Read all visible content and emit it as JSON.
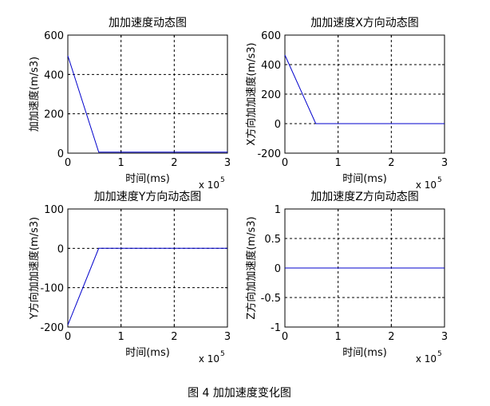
{
  "figure_caption": "图 4  加加速度变化图",
  "colors": {
    "line": "#0000cc",
    "axes": "#000000",
    "background": "#ffffff"
  },
  "chart_data": [
    {
      "type": "line",
      "title": "加加速度动态图",
      "xlabel": "时间(ms)",
      "ylabel": "加加速度(m/s3)",
      "x_exponent_label": "x 10",
      "x_exponent_power": "5",
      "xlim": [
        0,
        3
      ],
      "ylim": [
        0,
        600
      ],
      "xticks": [
        0,
        1,
        2,
        3
      ],
      "xtick_labels": [
        "0",
        "1",
        "2",
        "3"
      ],
      "yticks": [
        0,
        200,
        400,
        600
      ],
      "ytick_labels": [
        "0",
        "200",
        "400",
        "600"
      ],
      "grid": true,
      "series": [
        {
          "x": [
            0,
            0.58,
            3
          ],
          "y": [
            495,
            5,
            5
          ]
        }
      ]
    },
    {
      "type": "line",
      "title": "加加速度X方向动态图",
      "xlabel": "时间(ms)",
      "ylabel": "X方向加加速度(m/s3)",
      "x_exponent_label": "x 10",
      "x_exponent_power": "5",
      "xlim": [
        0,
        3
      ],
      "ylim": [
        -200,
        600
      ],
      "xticks": [
        0,
        1,
        2,
        3
      ],
      "xtick_labels": [
        "0",
        "1",
        "2",
        "3"
      ],
      "yticks": [
        -200,
        0,
        200,
        400,
        600
      ],
      "ytick_labels": [
        "-200",
        "0",
        "200",
        "400",
        "600"
      ],
      "grid": true,
      "series": [
        {
          "x": [
            0,
            0.58,
            3
          ],
          "y": [
            465,
            0,
            0
          ]
        }
      ]
    },
    {
      "type": "line",
      "title": "加加速度Y方向动态图",
      "xlabel": "时间(ms)",
      "ylabel": "Y方向加加速度(m/s3)",
      "x_exponent_label": "x 10",
      "x_exponent_power": "5",
      "xlim": [
        0,
        3
      ],
      "ylim": [
        -200,
        100
      ],
      "xticks": [
        0,
        1,
        2,
        3
      ],
      "xtick_labels": [
        "0",
        "1",
        "2",
        "3"
      ],
      "yticks": [
        -200,
        -100,
        0,
        100
      ],
      "ytick_labels": [
        "-200",
        "-100",
        "0",
        "100"
      ],
      "grid": true,
      "series": [
        {
          "x": [
            0,
            0.58,
            3
          ],
          "y": [
            -195,
            0,
            0
          ]
        }
      ]
    },
    {
      "type": "line",
      "title": "加加速度Z方向动态图",
      "xlabel": "时间(ms)",
      "ylabel": "Z方向加加速度(m/s3)",
      "x_exponent_label": "x 10",
      "x_exponent_power": "5",
      "xlim": [
        0,
        3
      ],
      "ylim": [
        -1,
        1
      ],
      "xticks": [
        0,
        1,
        2,
        3
      ],
      "xtick_labels": [
        "0",
        "1",
        "2",
        "3"
      ],
      "yticks": [
        -1,
        -0.5,
        0,
        0.5,
        1
      ],
      "ytick_labels": [
        "-1",
        "-0.5",
        "0",
        "0.5",
        "1"
      ],
      "grid": true,
      "series": [
        {
          "x": [
            0,
            3
          ],
          "y": [
            0,
            0
          ]
        }
      ]
    }
  ]
}
